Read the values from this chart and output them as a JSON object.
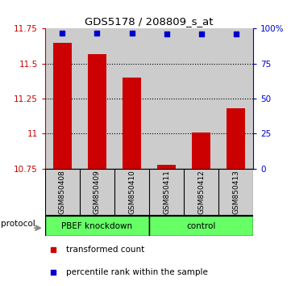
{
  "title": "GDS5178 / 208809_s_at",
  "samples": [
    "GSM850408",
    "GSM850409",
    "GSM850410",
    "GSM850411",
    "GSM850412",
    "GSM850413"
  ],
  "red_values": [
    11.65,
    11.57,
    11.4,
    10.78,
    11.01,
    11.18
  ],
  "blue_values": [
    97,
    97,
    97,
    96,
    96,
    96
  ],
  "ylim_left": [
    10.75,
    11.75
  ],
  "ylim_right": [
    0,
    100
  ],
  "yticks_left": [
    10.75,
    11.0,
    11.25,
    11.5,
    11.75
  ],
  "yticks_right": [
    0,
    25,
    50,
    75,
    100
  ],
  "ytick_labels_left": [
    "10.75",
    "11",
    "11.25",
    "11.5",
    "11.75"
  ],
  "ytick_labels_right": [
    "0",
    "25",
    "50",
    "75",
    "100%"
  ],
  "protocol_label": "protocol",
  "bar_color": "#cc0000",
  "marker_color": "#0000cc",
  "bar_width": 0.55,
  "column_bg_color": "#cccccc",
  "group1_label": "PBEF knockdown",
  "group2_label": "control",
  "group_color": "#66ff66",
  "legend1": "transformed count",
  "legend2": "percentile rank within the sample"
}
